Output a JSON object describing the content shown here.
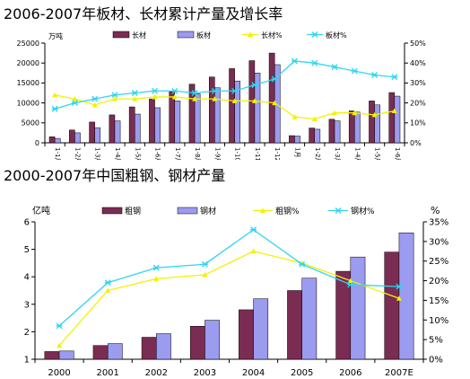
{
  "colors": {
    "bar_primary": "#7b2c52",
    "bar_secondary": "#9b9bf0",
    "line_yellow": "#f2f200",
    "line_cyan": "#2ed6f0",
    "axis": "#000000"
  },
  "chart_data": [
    {
      "type": "bar",
      "title": "2006-2007年板材、长材累计产量及增长率",
      "left_unit": "万吨",
      "categories": [
        "1-1月",
        "1-2月",
        "1-3月",
        "1-4月",
        "1-5月",
        "1-6月",
        "1-7月",
        "1-8月",
        "1-9月",
        "1-10月",
        "1-11月",
        "1-12月",
        "1月",
        "1-2月",
        "1-3月",
        "1-4月",
        "1-5月",
        "1-6月"
      ],
      "series": [
        {
          "name": "长材",
          "kind": "bar",
          "axis": "left",
          "color": "#7b2c52",
          "values": [
            1500,
            3200,
            5200,
            7000,
            9000,
            11000,
            12800,
            14700,
            16500,
            18600,
            20600,
            22500,
            1800,
            3700,
            5900,
            8000,
            10500,
            12600
          ]
        },
        {
          "name": "板材",
          "kind": "bar",
          "axis": "left",
          "color": "#9b9bf0",
          "values": [
            1100,
            2500,
            3800,
            5500,
            7200,
            8800,
            10500,
            12300,
            13800,
            15500,
            17500,
            19600,
            1700,
            3400,
            5500,
            7700,
            9500,
            11700
          ]
        },
        {
          "name": "长材%",
          "kind": "line",
          "axis": "right",
          "color": "#f2f200",
          "values": [
            24,
            22,
            19,
            22,
            22,
            23,
            23,
            22,
            22,
            21,
            21,
            20,
            13,
            12,
            15,
            15,
            14,
            16
          ]
        },
        {
          "name": "板材%",
          "kind": "line",
          "axis": "right",
          "color": "#2ed6f0",
          "values": [
            17,
            20,
            22,
            24,
            25,
            26,
            26,
            25,
            26,
            26,
            29,
            32,
            41,
            40,
            38,
            36,
            34,
            33
          ]
        }
      ],
      "y_left": {
        "min": 0,
        "max": 25000,
        "ticks": [
          0,
          5000,
          10000,
          15000,
          20000,
          25000
        ]
      },
      "y_right": {
        "min": 0,
        "max": 50,
        "ticks": [
          "0%",
          "10%",
          "20%",
          "30%",
          "40%",
          "50%"
        ]
      },
      "legend": "top"
    },
    {
      "type": "bar",
      "title": "2000-2007年中国粗钢、钢材产量",
      "left_unit": "亿吨",
      "right_unit": "%",
      "categories": [
        "2000",
        "2001",
        "2002",
        "2003",
        "2004",
        "2005",
        "2006",
        "2007E"
      ],
      "series": [
        {
          "name": "粗钢",
          "kind": "bar",
          "axis": "left",
          "color": "#7b2c52",
          "values": [
            1.28,
            1.5,
            1.8,
            2.2,
            2.8,
            3.5,
            4.2,
            4.9
          ]
        },
        {
          "name": "钢材",
          "kind": "bar",
          "axis": "left",
          "color": "#9b9bf0",
          "values": [
            1.3,
            1.57,
            1.93,
            2.42,
            3.2,
            3.95,
            4.72,
            5.6
          ]
        },
        {
          "name": "粗钢%",
          "kind": "line",
          "axis": "right",
          "color": "#f2f200",
          "values": [
            3.5,
            17.5,
            20.5,
            21.5,
            27.5,
            24.5,
            20,
            15.5
          ]
        },
        {
          "name": "钢材%",
          "kind": "line",
          "axis": "right",
          "color": "#2ed6f0",
          "values": [
            8.5,
            19.5,
            23.3,
            24.2,
            33,
            24.2,
            19,
            18.5
          ]
        }
      ],
      "y_left": {
        "min": 1,
        "max": 6,
        "ticks": [
          1,
          2,
          3,
          4,
          5,
          6
        ]
      },
      "y_right": {
        "min": 0,
        "max": 35,
        "ticks": [
          "0%",
          "5%",
          "10%",
          "15%",
          "20%",
          "25%",
          "30%",
          "35%"
        ]
      },
      "legend": "top"
    }
  ]
}
